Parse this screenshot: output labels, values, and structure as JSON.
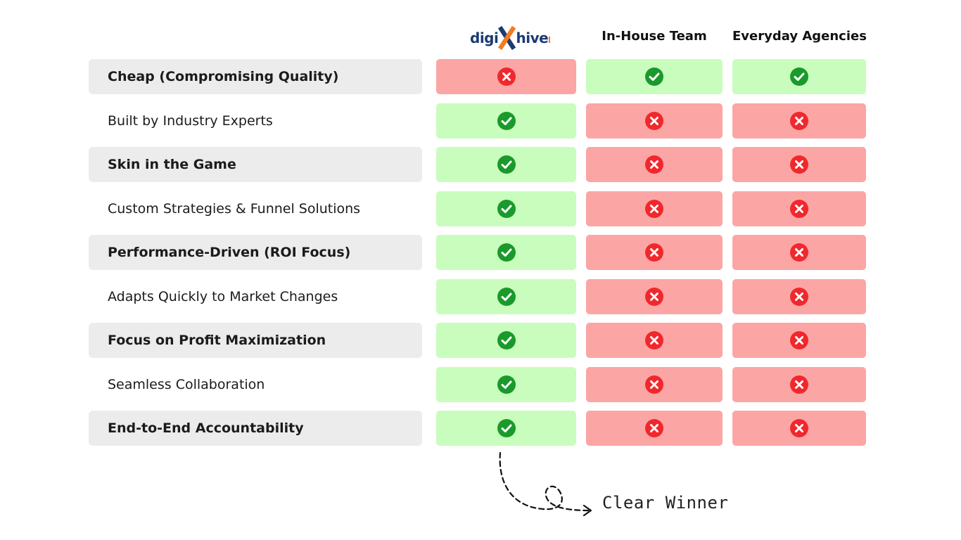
{
  "header": {
    "brand": {
      "part1": "digi",
      "mark": "X",
      "part2": "hive",
      "colors": {
        "text": "#1c3a73",
        "accent": "#f47a20"
      }
    },
    "columns": [
      "In-House Team",
      "Everyday Agencies"
    ]
  },
  "rows": [
    {
      "label": "Cheap (Compromising Quality)",
      "values": [
        false,
        true,
        true
      ]
    },
    {
      "label": "Built by Industry Experts",
      "values": [
        true,
        false,
        false
      ]
    },
    {
      "label": "Skin in the Game",
      "values": [
        true,
        false,
        false
      ]
    },
    {
      "label": "Custom Strategies & Funnel Solutions",
      "values": [
        true,
        false,
        false
      ]
    },
    {
      "label": "Performance-Driven (ROI Focus)",
      "values": [
        true,
        false,
        false
      ]
    },
    {
      "label": "Adapts Quickly to Market Changes",
      "values": [
        true,
        false,
        false
      ]
    },
    {
      "label": "Focus on Profit Maximization",
      "values": [
        true,
        false,
        false
      ]
    },
    {
      "label": "Seamless Collaboration",
      "values": [
        true,
        false,
        false
      ]
    },
    {
      "label": "End-to-End Accountability",
      "values": [
        true,
        false,
        false
      ]
    }
  ],
  "icons": {
    "yes": "check-circle-icon",
    "no": "x-circle-icon"
  },
  "colors": {
    "yes_bg": "#c9fdbd",
    "no_bg": "#fca5a5",
    "yes_icon": "#1a9a2b",
    "no_icon": "#f0282d",
    "label_bg": "#ececec"
  },
  "footer": {
    "annotation": "Clear Winner"
  }
}
